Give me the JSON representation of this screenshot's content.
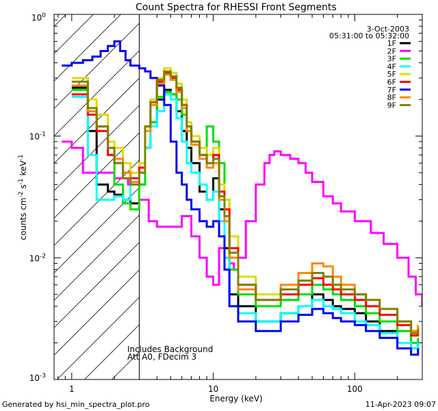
{
  "chart_data": {
    "type": "line",
    "title": "Count Spectra for RHESSI Front Segments",
    "xlabel": "Energy (keV)",
    "ylabel": "counts cm-2 s-1 keV-1",
    "xscale": "log",
    "yscale": "log",
    "xlim": [
      0.75,
      300
    ],
    "ylim": [
      0.001,
      1
    ],
    "x_ticks": [
      {
        "value": 1,
        "label": "1"
      },
      {
        "value": 10,
        "label": "10"
      },
      {
        "value": 100,
        "label": "100"
      }
    ],
    "y_ticks": [
      {
        "value": 1,
        "mant": "10",
        "exp": "0"
      },
      {
        "value": 0.1,
        "mant": "10",
        "exp": "-1"
      },
      {
        "value": 0.01,
        "mant": "10",
        "exp": "-2"
      },
      {
        "value": 0.001,
        "mant": "10",
        "exp": "-3"
      }
    ],
    "date": "3-Oct-2003",
    "time_range": "05:31:00 to 05:32:00",
    "annotations": [
      "Includes Background",
      "Att A0, FDecim 3"
    ],
    "hatched_region": [
      0.75,
      3
    ],
    "legend_position": "top-right",
    "footer_left": "Generated by hsi_min_spectra_plot.pro",
    "footer_right": "11-Apr-2023 09:07",
    "series": [
      {
        "name": "1F",
        "color": "#000000",
        "x": [
          1,
          1.3,
          1.5,
          1.8,
          2,
          2.3,
          2.6,
          3,
          3.3,
          3.6,
          4,
          4.5,
          5,
          5.5,
          6,
          6.5,
          7,
          8,
          9,
          10,
          11,
          12,
          13,
          15,
          20,
          30,
          40,
          50,
          60,
          70,
          80,
          100,
          120,
          150,
          200,
          250,
          280
        ],
        "y": [
          0.25,
          0.11,
          0.04,
          0.035,
          0.033,
          0.03,
          0.028,
          0.04,
          0.08,
          0.13,
          0.2,
          0.24,
          0.22,
          0.16,
          0.11,
          0.08,
          0.06,
          0.035,
          0.03,
          0.045,
          0.025,
          0.012,
          0.005,
          0.004,
          0.003,
          0.0035,
          0.004,
          0.005,
          0.0045,
          0.004,
          0.0038,
          0.0035,
          0.003,
          0.0025,
          0.002,
          0.0018,
          0.002
        ]
      },
      {
        "name": "2F",
        "color": "#ff00ff",
        "x": [
          0.85,
          1,
          1.2,
          1.5,
          2,
          2.5,
          3,
          3.5,
          4,
          5,
          6,
          7,
          8,
          9,
          10,
          11,
          12,
          13,
          14,
          15,
          17,
          20,
          23,
          25,
          27,
          30,
          35,
          40,
          45,
          50,
          60,
          70,
          80,
          100,
          130,
          160,
          200,
          240,
          270,
          300
        ],
        "y": [
          0.09,
          0.08,
          0.05,
          0.05,
          0.045,
          0.04,
          0.03,
          0.02,
          0.018,
          0.018,
          0.022,
          0.015,
          0.01,
          0.007,
          0.006,
          0.012,
          0.01,
          0.009,
          0.008,
          0.01,
          0.02,
          0.04,
          0.06,
          0.07,
          0.075,
          0.07,
          0.065,
          0.06,
          0.05,
          0.042,
          0.032,
          0.028,
          0.024,
          0.02,
          0.016,
          0.013,
          0.01,
          0.007,
          0.005,
          0.004
        ]
      },
      {
        "name": "3F",
        "color": "#00dd00",
        "x": [
          1,
          1.3,
          1.5,
          1.8,
          2,
          2.3,
          2.6,
          3,
          3.3,
          3.6,
          4,
          4.5,
          5,
          5.5,
          6,
          6.5,
          7,
          8,
          9,
          10,
          11,
          12,
          13,
          15,
          20,
          30,
          40,
          50,
          60,
          70,
          80,
          100,
          120,
          150,
          200,
          250,
          280
        ],
        "y": [
          0.24,
          0.16,
          0.12,
          0.07,
          0.04,
          0.028,
          0.025,
          0.04,
          0.08,
          0.13,
          0.21,
          0.23,
          0.22,
          0.2,
          0.15,
          0.11,
          0.09,
          0.07,
          0.12,
          0.09,
          0.06,
          0.03,
          0.008,
          0.005,
          0.004,
          0.0045,
          0.005,
          0.006,
          0.0055,
          0.005,
          0.0045,
          0.004,
          0.0035,
          0.003,
          0.0025,
          0.002,
          0.0022
        ]
      },
      {
        "name": "4F",
        "color": "#00ffff",
        "x": [
          1,
          1.3,
          1.5,
          1.8,
          2,
          2.3,
          2.6,
          3,
          3.3,
          3.6,
          4,
          4.5,
          5,
          5.5,
          6,
          6.5,
          7,
          8,
          9,
          10,
          11,
          12,
          13,
          15,
          20,
          30,
          40,
          50,
          60,
          70,
          80,
          100,
          120,
          150,
          200,
          250,
          280
        ],
        "y": [
          0.21,
          0.07,
          0.03,
          0.03,
          0.032,
          0.03,
          0.04,
          0.05,
          0.08,
          0.12,
          0.16,
          0.22,
          0.2,
          0.14,
          0.09,
          0.06,
          0.05,
          0.04,
          0.03,
          0.035,
          0.02,
          0.01,
          0.004,
          0.0035,
          0.003,
          0.0035,
          0.004,
          0.0045,
          0.004,
          0.0038,
          0.0035,
          0.003,
          0.0028,
          0.0024,
          0.002,
          0.0018,
          0.002
        ]
      },
      {
        "name": "5F",
        "color": "#dddd00",
        "x": [
          1,
          1.3,
          1.5,
          1.8,
          2,
          2.3,
          2.6,
          3,
          3.3,
          3.6,
          4,
          4.5,
          5,
          5.5,
          6,
          6.5,
          7,
          8,
          9,
          10,
          11,
          12,
          13,
          15,
          20,
          30,
          40,
          50,
          60,
          70,
          80,
          100,
          120,
          150,
          200,
          250,
          280
        ],
        "y": [
          0.3,
          0.2,
          0.15,
          0.09,
          0.08,
          0.06,
          0.05,
          0.06,
          0.12,
          0.2,
          0.3,
          0.36,
          0.33,
          0.27,
          0.2,
          0.13,
          0.1,
          0.08,
          0.07,
          0.08,
          0.04,
          0.03,
          0.015,
          0.007,
          0.005,
          0.0055,
          0.0065,
          0.0075,
          0.007,
          0.006,
          0.0055,
          0.005,
          0.0045,
          0.0038,
          0.003,
          0.0025,
          0.0028
        ]
      },
      {
        "name": "6F",
        "color": "#ff0000",
        "x": [
          1,
          1.3,
          1.5,
          1.8,
          2,
          2.3,
          2.6,
          3,
          3.3,
          3.6,
          4,
          4.5,
          5,
          5.5,
          6,
          6.5,
          7,
          8,
          9,
          10,
          11,
          12,
          13,
          15,
          20,
          30,
          40,
          50,
          60,
          70,
          80,
          100,
          120,
          150,
          200,
          250,
          280
        ],
        "y": [
          0.22,
          0.15,
          0.11,
          0.07,
          0.06,
          0.05,
          0.045,
          0.055,
          0.12,
          0.19,
          0.28,
          0.33,
          0.3,
          0.24,
          0.18,
          0.12,
          0.09,
          0.07,
          0.06,
          0.07,
          0.035,
          0.025,
          0.012,
          0.006,
          0.0045,
          0.005,
          0.006,
          0.0068,
          0.006,
          0.0055,
          0.005,
          0.0045,
          0.004,
          0.0034,
          0.0028,
          0.0023,
          0.0025
        ]
      },
      {
        "name": "7F",
        "color": "#0000ee",
        "x": [
          0.85,
          1,
          1.2,
          1.4,
          1.6,
          1.8,
          2,
          2.2,
          2.4,
          2.6,
          3,
          3.3,
          3.6,
          4,
          4.5,
          5,
          5.5,
          6,
          6.5,
          7,
          8,
          9,
          10,
          11,
          12,
          13,
          15,
          20,
          30,
          40,
          50,
          60,
          70,
          80,
          100,
          120,
          150,
          200,
          250,
          280
        ],
        "y": [
          0.38,
          0.4,
          0.42,
          0.45,
          0.5,
          0.55,
          0.6,
          0.5,
          0.42,
          0.38,
          0.36,
          0.34,
          0.3,
          0.26,
          0.18,
          0.09,
          0.05,
          0.04,
          0.03,
          0.025,
          0.02,
          0.018,
          0.02,
          0.015,
          0.008,
          0.004,
          0.003,
          0.0025,
          0.003,
          0.0034,
          0.0038,
          0.0035,
          0.0032,
          0.003,
          0.0028,
          0.0025,
          0.0022,
          0.0018,
          0.0016,
          0.0018
        ]
      },
      {
        "name": "8F",
        "color": "#ff8800",
        "x": [
          1,
          1.3,
          1.5,
          1.8,
          2,
          2.3,
          2.6,
          3,
          3.3,
          3.6,
          4,
          4.5,
          5,
          5.5,
          6,
          6.5,
          7,
          8,
          9,
          10,
          11,
          12,
          13,
          15,
          20,
          30,
          40,
          50,
          60,
          70,
          80,
          100,
          120,
          150,
          200,
          250,
          280
        ],
        "y": [
          0.26,
          0.16,
          0.12,
          0.08,
          0.065,
          0.05,
          0.042,
          0.05,
          0.11,
          0.18,
          0.27,
          0.32,
          0.29,
          0.23,
          0.17,
          0.11,
          0.085,
          0.065,
          0.055,
          0.06,
          0.03,
          0.02,
          0.01,
          0.0055,
          0.0045,
          0.006,
          0.0075,
          0.009,
          0.0085,
          0.007,
          0.006,
          0.005,
          0.0045,
          0.0038,
          0.003,
          0.0025,
          0.0028
        ]
      },
      {
        "name": "9F",
        "color": "#808000",
        "x": [
          1,
          1.3,
          1.5,
          1.8,
          2,
          2.3,
          2.6,
          3,
          3.3,
          3.6,
          4,
          4.5,
          5,
          5.5,
          6,
          6.5,
          7,
          8,
          9,
          10,
          11,
          12,
          13,
          15,
          20,
          30,
          40,
          50,
          60,
          70,
          80,
          100,
          120,
          150,
          200,
          250,
          280
        ],
        "y": [
          0.28,
          0.17,
          0.12,
          0.08,
          0.06,
          0.045,
          0.04,
          0.05,
          0.12,
          0.19,
          0.29,
          0.34,
          0.31,
          0.25,
          0.18,
          0.12,
          0.09,
          0.07,
          0.06,
          0.065,
          0.032,
          0.022,
          0.011,
          0.006,
          0.0045,
          0.0055,
          0.0065,
          0.0075,
          0.007,
          0.006,
          0.0055,
          0.005,
          0.0045,
          0.0038,
          0.003,
          0.0024,
          0.0026
        ]
      }
    ]
  }
}
